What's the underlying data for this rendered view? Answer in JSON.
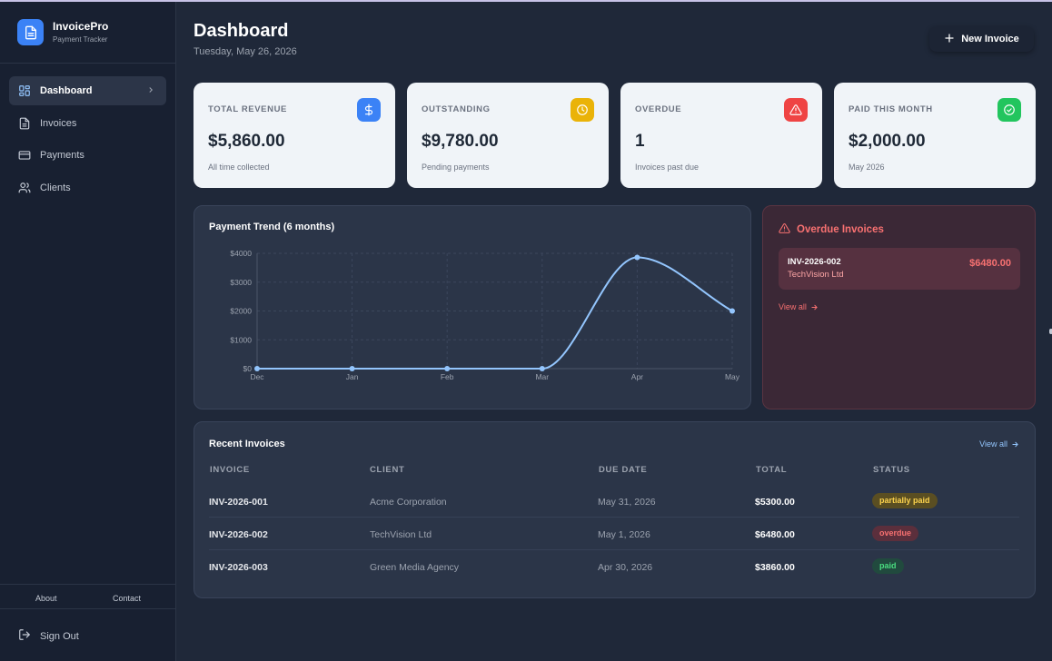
{
  "app": {
    "name": "InvoicePro",
    "tagline": "Payment Tracker"
  },
  "nav": [
    {
      "label": "Dashboard",
      "icon": "dashboard-icon",
      "active": true
    },
    {
      "label": "Invoices",
      "icon": "invoice-icon"
    },
    {
      "label": "Payments",
      "icon": "credit-card-icon"
    },
    {
      "label": "Clients",
      "icon": "users-icon"
    }
  ],
  "footer": {
    "about": "About",
    "contact": "Contact",
    "sign_out": "Sign Out"
  },
  "header": {
    "title": "Dashboard",
    "date": "Tuesday, May 26, 2026",
    "new_invoice": "New Invoice"
  },
  "stats": [
    {
      "label": "TOTAL REVENUE",
      "value": "$5,860.00",
      "sub": "All time collected",
      "icon": "dollar-icon",
      "color": "#3b82f6"
    },
    {
      "label": "OUTSTANDING",
      "value": "$9,780.00",
      "sub": "Pending payments",
      "icon": "clock-icon",
      "color": "#eab308"
    },
    {
      "label": "OVERDUE",
      "value": "1",
      "sub": "Invoices past due",
      "icon": "alert-triangle-icon",
      "color": "#ef4444"
    },
    {
      "label": "PAID THIS MONTH",
      "value": "$2,000.00",
      "sub": "May 2026",
      "icon": "check-circle-icon",
      "color": "#22c55e"
    }
  ],
  "chart_data": {
    "type": "line",
    "title": "Payment Trend (6 months)",
    "categories": [
      "Dec",
      "Jan",
      "Feb",
      "Mar",
      "Apr",
      "May"
    ],
    "values": [
      0,
      0,
      0,
      0,
      3860,
      2000
    ],
    "yticks": [
      "$0",
      "$1000",
      "$2000",
      "$3000",
      "$4000"
    ],
    "ylim": [
      0,
      4000
    ],
    "grid": true,
    "color": "#93c5fd"
  },
  "overdue": {
    "title": "Overdue Invoices",
    "items": [
      {
        "number": "INV-2026-002",
        "client": "TechVision Ltd",
        "amount": "$6480.00"
      }
    ],
    "view_all": "View all"
  },
  "recent": {
    "title": "Recent Invoices",
    "view_all": "View all",
    "columns": [
      "INVOICE",
      "CLIENT",
      "DUE DATE",
      "TOTAL",
      "STATUS"
    ],
    "rows": [
      {
        "invoice": "INV-2026-001",
        "client": "Acme Corporation",
        "due": "May 31, 2026",
        "total": "$5300.00",
        "status": "partially paid"
      },
      {
        "invoice": "INV-2026-002",
        "client": "TechVision Ltd",
        "due": "May 1, 2026",
        "total": "$6480.00",
        "status": "overdue"
      },
      {
        "invoice": "INV-2026-003",
        "client": "Green Media Agency",
        "due": "Apr 30, 2026",
        "total": "$3860.00",
        "status": "paid"
      }
    ]
  }
}
